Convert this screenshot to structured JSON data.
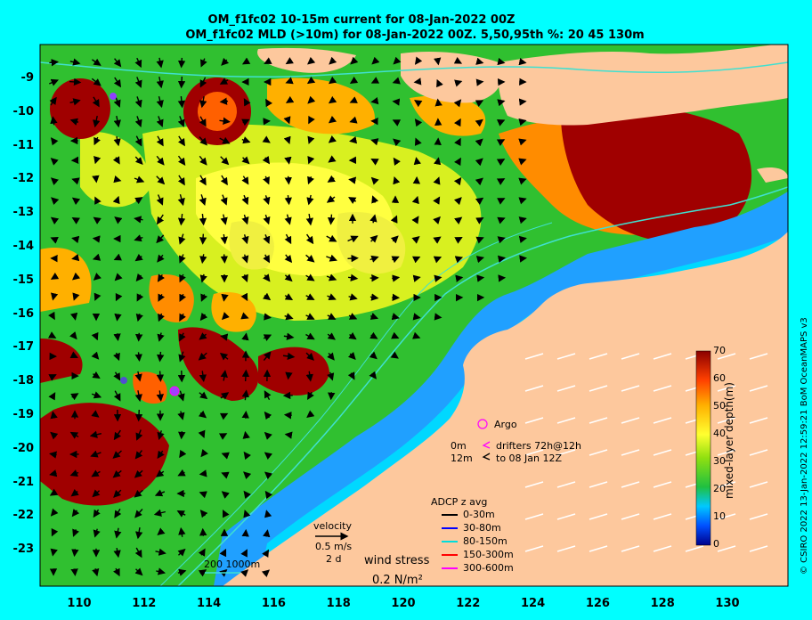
{
  "titles": {
    "line1": "OM_f1fc02 10-15m current for 08-Jan-2022 00Z",
    "line2": "OM_f1fc02 MLD (>10m) for 08-Jan-2022 00Z. 5,50,95th %: 20   45  130m"
  },
  "axes": {
    "x_ticks": [
      "110",
      "112",
      "114",
      "116",
      "118",
      "120",
      "122",
      "124",
      "126",
      "128",
      "130"
    ],
    "y_ticks": [
      "-9",
      "-10",
      "-11",
      "-12",
      "-13",
      "-14",
      "-15",
      "-16",
      "-17",
      "-18",
      "-19",
      "-20",
      "-21",
      "-22",
      "-23"
    ]
  },
  "colorbar": {
    "title": "mixed-layer depth(m)",
    "ticks": [
      "70",
      "60",
      "50",
      "40",
      "30",
      "20",
      "10",
      "0"
    ]
  },
  "legend": {
    "argo": "Argo",
    "drifter_depth_0": "0m",
    "drifter_depth_12": "12m",
    "drifter_text_1": "drifters 72h@12h",
    "drifter_text_2": "to 08 Jan 12Z",
    "adcp_title": "ADCP z avg",
    "adcp_rows": [
      {
        "label": "0-30m",
        "color": "#000000"
      },
      {
        "label": "30-80m",
        "color": "#0000ff"
      },
      {
        "label": "80-150m",
        "color": "#00dddd"
      },
      {
        "label": "150-300m",
        "color": "#ff0000"
      },
      {
        "label": "300-600m",
        "color": "#ff00ff"
      }
    ],
    "velocity_title": "velocity",
    "velocity_scale": "0.5 m/s",
    "velocity_period": "2 d",
    "isobaths": "200  1000m",
    "wind_title": "wind stress",
    "wind_scale": "0.2 N/m²"
  },
  "credit": "© CSIRO 2022  13-Jan-2022 12:59:21 BoM OceanMAPS v3",
  "colors": {
    "background": "#00ffff",
    "land": "#fdc89d",
    "isobath": "#40e0d0"
  }
}
